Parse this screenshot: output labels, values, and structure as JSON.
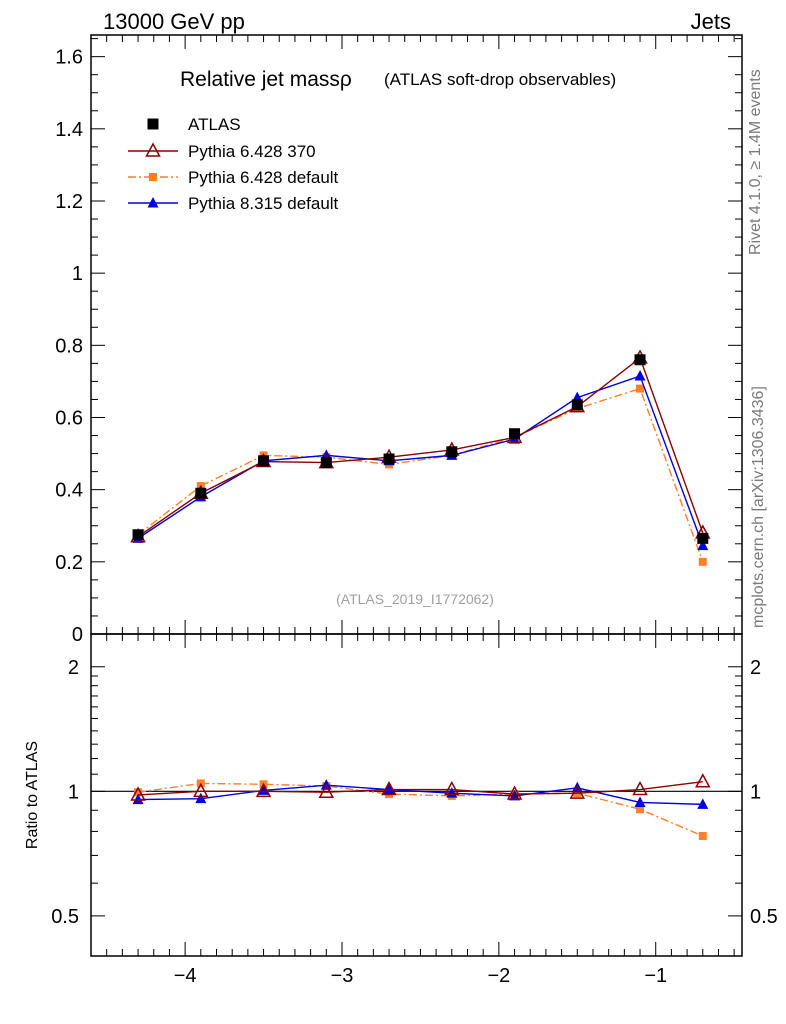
{
  "header": {
    "left": "13000 GeV pp",
    "right": "Jets"
  },
  "side_labels": {
    "top": "Rivet 4.1.0, ≥ 1.4M events",
    "bottom": "mcplots.cern.ch [arXiv:1306.3436]"
  },
  "chart_data": {
    "type": "line",
    "title": "Relative jet mass",
    "title_symbol": "ρ",
    "subtitle": "(ATLAS soft-drop observables)",
    "watermark": "(ATLAS_2019_I1772062)",
    "xlabel": "",
    "ylabel": "",
    "xlim": [
      -4.6,
      -0.45
    ],
    "ylim": [
      0,
      1.66
    ],
    "x_ticks": [
      "−4",
      "−3",
      "−2",
      "−1"
    ],
    "x_tick_values": [
      -4,
      -3,
      -2,
      -1
    ],
    "y_ticks": [
      "0",
      "0.2",
      "0.4",
      "0.6",
      "0.8",
      "1",
      "1.2",
      "1.4",
      "1.6"
    ],
    "y_tick_values": [
      0,
      0.2,
      0.4,
      0.6,
      0.8,
      1,
      1.2,
      1.4,
      1.6
    ],
    "x": [
      -4.3,
      -3.9,
      -3.5,
      -3.1,
      -2.7,
      -2.3,
      -1.9,
      -1.5,
      -1.1,
      -0.7
    ],
    "series": [
      {
        "name": "ATLAS",
        "key": "atlas",
        "color": "#000000",
        "marker": "square-filled",
        "line": "none",
        "values": [
          0.275,
          0.39,
          0.48,
          0.475,
          0.485,
          0.505,
          0.555,
          0.635,
          0.76,
          0.265
        ]
      },
      {
        "name": "Pythia 6.428 370",
        "key": "p6_370",
        "color": "#8b0000",
        "marker": "triangle-open",
        "line": "solid",
        "values": [
          0.27,
          0.39,
          0.478,
          0.475,
          0.49,
          0.51,
          0.545,
          0.63,
          0.765,
          0.28
        ]
      },
      {
        "name": "Pythia 6.428 default",
        "key": "p6_def",
        "color": "#ff7f2a",
        "marker": "square-filled-small",
        "line": "dashdot",
        "values": [
          0.275,
          0.41,
          0.495,
          0.49,
          0.47,
          0.495,
          0.545,
          0.625,
          0.68,
          0.2
        ]
      },
      {
        "name": "Pythia 8.315 default",
        "key": "p8_def",
        "color": "#0000e0",
        "marker": "triangle-filled",
        "line": "solid",
        "values": [
          0.265,
          0.38,
          0.48,
          0.495,
          0.48,
          0.495,
          0.54,
          0.655,
          0.715,
          0.245
        ]
      }
    ],
    "ratio": {
      "ylabel": "Ratio to ATLAS",
      "ylim": [
        0.4,
        2.4
      ],
      "y_ticks": [
        "0.5",
        "1",
        "2"
      ],
      "y_tick_values": [
        0.5,
        1,
        2
      ],
      "reference": 1,
      "series": [
        {
          "key": "p6_370",
          "values": [
            0.98,
            1.0,
            1.0,
            0.995,
            1.01,
            1.01,
            0.985,
            0.99,
            1.01,
            1.055
          ]
        },
        {
          "key": "p6_def",
          "values": [
            0.995,
            1.045,
            1.04,
            1.03,
            0.985,
            0.975,
            0.985,
            0.99,
            0.905,
            0.78
          ]
        },
        {
          "key": "p8_def",
          "values": [
            0.955,
            0.96,
            1.005,
            1.035,
            1.01,
            0.99,
            0.975,
            1.02,
            0.94,
            0.93
          ]
        }
      ]
    }
  }
}
